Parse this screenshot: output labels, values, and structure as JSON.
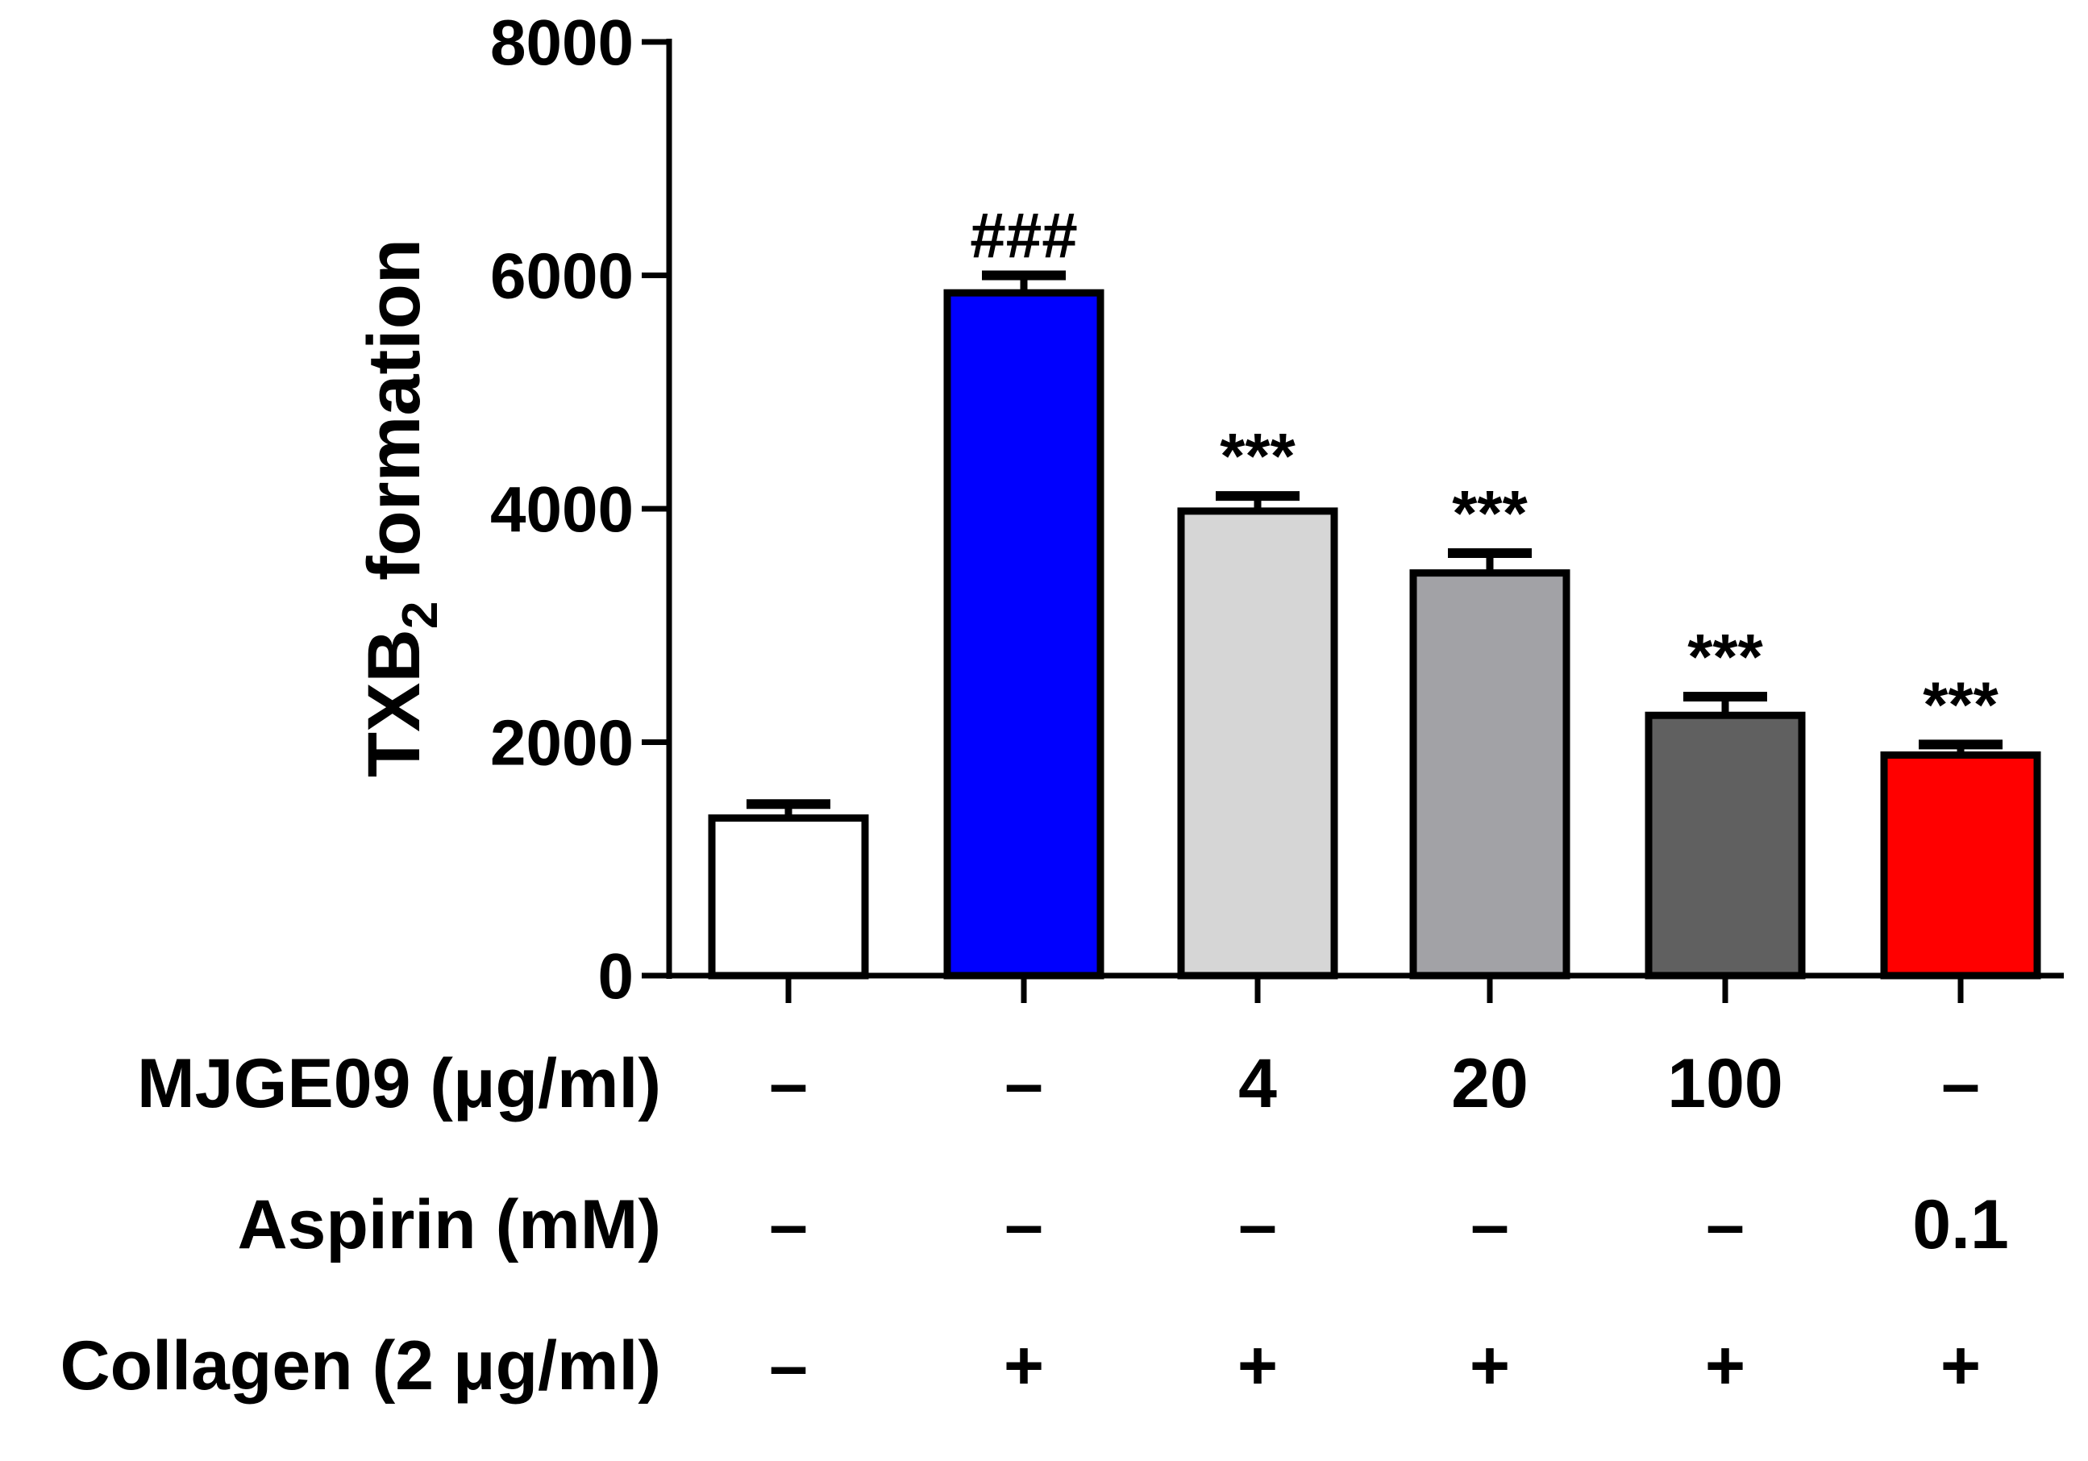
{
  "chart_data": {
    "type": "bar",
    "title": "",
    "xlabel": "",
    "ylabel": {
      "base": "TXB",
      "subscript": "2",
      "suffix": " formation"
    },
    "ylim": [
      0,
      8000
    ],
    "yticks": [
      "0",
      "2000",
      "4000",
      "6000",
      "8000"
    ],
    "ytick_values": [
      0,
      2000,
      4000,
      6000,
      8000
    ],
    "grid": false,
    "legend": "none",
    "bars": [
      {
        "value": 1350,
        "error": 120,
        "color": "#ffffff",
        "annotation": ""
      },
      {
        "value": 5850,
        "error": 150,
        "color": "#0000ff",
        "annotation": "###"
      },
      {
        "value": 3980,
        "error": 130,
        "color": "#d6d6d6",
        "annotation": "***"
      },
      {
        "value": 3450,
        "error": 170,
        "color": "#a2a2a6",
        "annotation": "***"
      },
      {
        "value": 2230,
        "error": 160,
        "color": "#606060",
        "annotation": "***"
      },
      {
        "value": 1890,
        "error": 90,
        "color": "#ff0000",
        "annotation": "***"
      }
    ],
    "treatment_table": [
      {
        "label": "MJGE09 (μg/ml)",
        "values": [
          "–",
          "–",
          "4",
          "20",
          "100",
          "–"
        ]
      },
      {
        "label": "Aspirin (mM)",
        "values": [
          "–",
          "–",
          "–",
          "–",
          "–",
          "0.1"
        ]
      },
      {
        "label": "Collagen (2 μg/ml)",
        "values": [
          "–",
          "+",
          "+",
          "+",
          "+",
          "+"
        ]
      }
    ]
  }
}
